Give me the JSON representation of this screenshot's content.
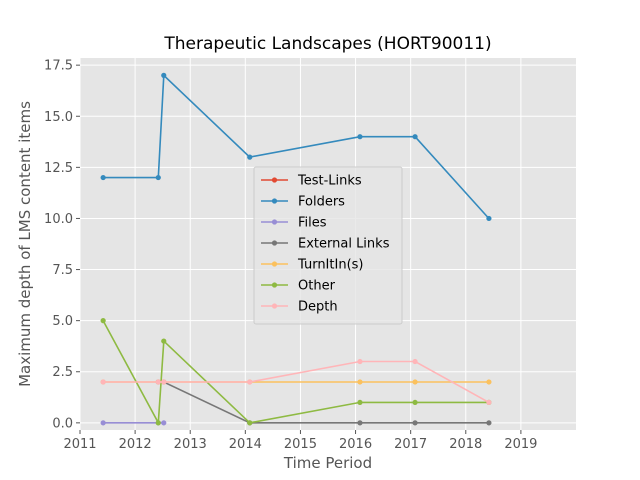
{
  "chart_data": {
    "type": "line",
    "title": "Therapeutic Landscapes (HORT90011)",
    "xlabel": "Time Period",
    "ylabel": "Maximum depth of LMS content items",
    "xlim": [
      2011,
      2020
    ],
    "ylim": [
      -0.35,
      17.85
    ],
    "xticks": [
      "2011",
      "2012",
      "2013",
      "2014",
      "2015",
      "2016",
      "2017",
      "2018",
      "2019"
    ],
    "yticks": [
      "0.0",
      "2.5",
      "5.0",
      "7.5",
      "10.0",
      "12.5",
      "15.0",
      "17.5"
    ],
    "grid": true,
    "legend_position": "center",
    "series": [
      {
        "name": "Test-Links",
        "color": "#E24A33",
        "x": [],
        "y": []
      },
      {
        "name": "Folders",
        "color": "#348ABD",
        "x": [
          2011.42,
          2012.42,
          2012.52,
          2014.08,
          2016.08,
          2017.08,
          2018.42
        ],
        "y": [
          12,
          12,
          17,
          13,
          14,
          14,
          10
        ]
      },
      {
        "name": "Files",
        "color": "#988ED5",
        "x": [
          2011.42,
          2012.42,
          2012.52
        ],
        "y": [
          0,
          0,
          0
        ]
      },
      {
        "name": "External Links",
        "color": "#777777",
        "x": [
          2012.42,
          2012.52,
          2014.08,
          2016.08,
          2017.08,
          2018.42
        ],
        "y": [
          2,
          2,
          0,
          0,
          0,
          0
        ]
      },
      {
        "name": "TurnItIn(s)",
        "color": "#FBC15E",
        "x": [
          2011.42,
          2012.42,
          2012.52,
          2014.08,
          2016.08,
          2017.08,
          2018.42
        ],
        "y": [
          2,
          2,
          2,
          2,
          2,
          2,
          2
        ]
      },
      {
        "name": "Other",
        "color": "#8EBA42",
        "x": [
          2011.42,
          2012.42,
          2012.52,
          2014.08,
          2016.08,
          2017.08,
          2018.42
        ],
        "y": [
          5,
          0,
          4,
          0,
          1,
          1,
          1
        ]
      },
      {
        "name": "Depth",
        "color": "#FFB5B8",
        "x": [
          2011.42,
          2012.42,
          2012.52,
          2014.08,
          2016.08,
          2017.08,
          2018.42
        ],
        "y": [
          2,
          2,
          2,
          2,
          3,
          3,
          1
        ]
      }
    ]
  }
}
